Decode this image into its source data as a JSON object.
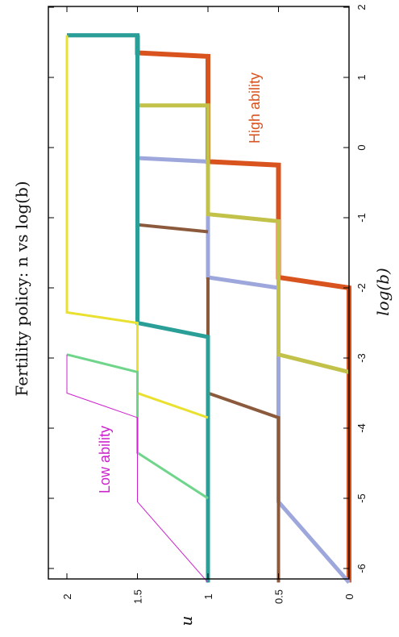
{
  "chart_data": {
    "type": "line",
    "title": "Fertility policy: n vs log(b)",
    "xlabel": "log(b)",
    "ylabel": "u",
    "xlim": [
      -6.2,
      2
    ],
    "ylim": [
      0,
      2.2
    ],
    "x_ticks": [
      "-6",
      "-5",
      "-4",
      "-3",
      "-2",
      "-1",
      "0",
      "1",
      "2"
    ],
    "y_ticks": [
      "0",
      "0.5",
      "1",
      "1.5",
      "2"
    ],
    "grid": false,
    "annotations": [
      {
        "text": "High ability",
        "color": "#d9531e"
      },
      {
        "text": "Low ability",
        "color": "#cc22cc"
      }
    ],
    "series": [
      {
        "color": "#d9531e",
        "width": 6,
        "points": [
          [
            -6.2,
            0
          ],
          [
            -2,
            0
          ],
          [
            -1.85,
            0.5
          ],
          [
            -0.25,
            0.5
          ],
          [
            -0.2,
            1
          ],
          [
            1.3,
            1
          ],
          [
            1.35,
            1.5
          ],
          [
            1.6,
            1.5
          ]
        ]
      },
      {
        "color": "#9ea7dc",
        "width": 5,
        "points": [
          [
            -6.2,
            0
          ],
          [
            -5.05,
            0.5
          ],
          [
            -2,
            0.5
          ],
          [
            -1.85,
            1
          ],
          [
            -0.2,
            1
          ],
          [
            -0.15,
            1.5
          ],
          [
            1.6,
            1.5
          ],
          [
            1.6,
            2
          ]
        ]
      },
      {
        "color": "#c2c24a",
        "width": 5,
        "points": [
          [
            -3.2,
            0
          ],
          [
            -2.95,
            0.5
          ],
          [
            -1.05,
            0.5
          ],
          [
            -0.95,
            1
          ],
          [
            0.6,
            1
          ],
          [
            0.6,
            1.5
          ]
        ]
      },
      {
        "color": "#8b5a3c",
        "width": 4,
        "points": [
          [
            -6.2,
            0.5
          ],
          [
            -3.85,
            0.5
          ],
          [
            -3.5,
            1
          ],
          [
            -1.85,
            1
          ]
        ]
      },
      {
        "color": "#8b5a3c",
        "width": 4,
        "points": [
          [
            -1.2,
            1
          ],
          [
            -1.1,
            1.5
          ],
          [
            -0.15,
            1.5
          ]
        ]
      },
      {
        "color": "#2a9f98",
        "width": 5,
        "points": [
          [
            -6.2,
            1
          ],
          [
            -2.7,
            1
          ],
          [
            -2.5,
            1.5
          ],
          [
            1.6,
            1.5
          ],
          [
            1.6,
            2
          ]
        ]
      },
      {
        "color": "#e9e030",
        "width": 3,
        "points": [
          [
            -3.85,
            1
          ],
          [
            -3.5,
            1.5
          ],
          [
            -2.5,
            1.5
          ],
          [
            -2.35,
            2
          ],
          [
            1.6,
            2
          ]
        ]
      },
      {
        "color": "#6ed58a",
        "width": 3,
        "points": [
          [
            -5,
            1
          ],
          [
            -4.35,
            1.5
          ],
          [
            -3.2,
            1.5
          ],
          [
            -2.95,
            2
          ]
        ]
      },
      {
        "color": "#cc22cc",
        "width": 1,
        "points": [
          [
            -6.2,
            1
          ],
          [
            -5.05,
            1.5
          ],
          [
            -3.85,
            1.5
          ],
          [
            -3.5,
            2
          ],
          [
            -2.95,
            2
          ]
        ]
      }
    ]
  }
}
